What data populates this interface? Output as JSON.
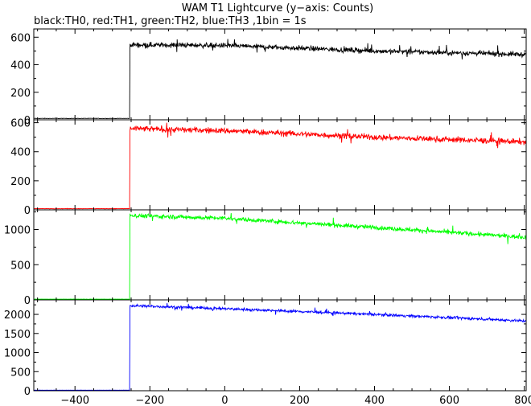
{
  "title": "WAM T1 Lightcurve (y−axis: Counts)",
  "subtitle": "black:TH0, red:TH1, green:TH2, blue:TH3 ,1bin = 1s",
  "chart_data": {
    "type": "line",
    "title": "WAM T1 Lightcurve (y−axis: Counts)",
    "subtitle": "black:TH0, red:TH1, green:TH2, blue:TH3 ,1bin = 1s",
    "xlim": [
      -510,
      805
    ],
    "x_ticks": [
      -400,
      -200,
      0,
      200,
      400,
      600,
      800
    ],
    "x_tick_labels": [
      "−400",
      "−200",
      "0",
      "200",
      "400",
      "600",
      "800"
    ],
    "onset_x": -253,
    "grid": false,
    "panels": [
      {
        "name": "TH0",
        "color": "#000000",
        "ylim": [
          0,
          660
        ],
        "y_ticks": [
          0,
          200,
          400,
          600
        ],
        "y_tick_labels": [
          "0",
          "200",
          "400",
          "600"
        ],
        "baseline": 10,
        "level_after_onset": [
          [
            -253,
            545
          ],
          [
            0,
            540
          ],
          [
            400,
            500
          ],
          [
            800,
            475
          ]
        ],
        "noise": 18
      },
      {
        "name": "TH1",
        "color": "#ff0000",
        "ylim": [
          0,
          620
        ],
        "y_ticks": [
          0,
          200,
          400,
          600
        ],
        "y_tick_labels": [
          "0",
          "200",
          "400",
          "600"
        ],
        "baseline": 8,
        "level_after_onset": [
          [
            -253,
            560
          ],
          [
            0,
            545
          ],
          [
            400,
            500
          ],
          [
            800,
            468
          ]
        ],
        "noise": 20
      },
      {
        "name": "TH2",
        "color": "#00ff00",
        "ylim": [
          0,
          1280
        ],
        "y_ticks": [
          0,
          500,
          1000
        ],
        "y_tick_labels": [
          "0",
          "500",
          "1000"
        ],
        "baseline": 10,
        "level_after_onset": [
          [
            -253,
            1200
          ],
          [
            0,
            1160
          ],
          [
            400,
            1030
          ],
          [
            800,
            890
          ]
        ],
        "noise": 30
      },
      {
        "name": "TH3",
        "color": "#0000ff",
        "ylim": [
          0,
          2380
        ],
        "y_ticks": [
          0,
          500,
          1000,
          1500,
          2000
        ],
        "y_tick_labels": [
          "0",
          "500",
          "1000",
          "1500",
          "2000"
        ],
        "baseline": 15,
        "level_after_onset": [
          [
            -253,
            2230
          ],
          [
            0,
            2150
          ],
          [
            400,
            2000
          ],
          [
            800,
            1830
          ]
        ],
        "noise": 35
      }
    ]
  }
}
